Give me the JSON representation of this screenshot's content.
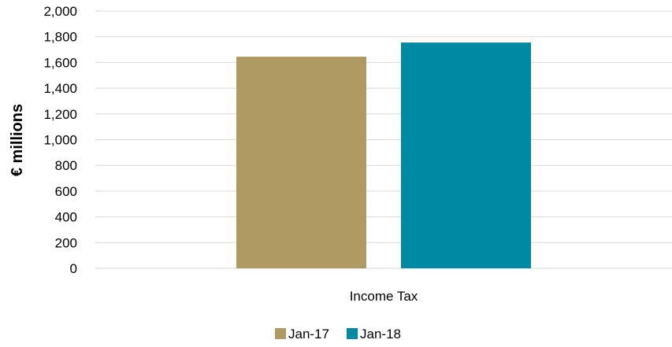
{
  "chart_data": {
    "type": "bar",
    "categories": [
      "Income Tax"
    ],
    "series": [
      {
        "name": "Jan-17",
        "values": [
          1645
        ],
        "color": "#ae9a62"
      },
      {
        "name": "Jan-18",
        "values": [
          1755
        ],
        "color": "#0089a3"
      }
    ],
    "ylabel": "€ millions",
    "xlabel": "",
    "ylim": [
      0,
      2000
    ],
    "yticks": [
      "0",
      "200",
      "400",
      "600",
      "800",
      "1,000",
      "1,200",
      "1,400",
      "1,600",
      "1,800",
      "2,000"
    ],
    "grid": true,
    "legend": "bottom"
  }
}
